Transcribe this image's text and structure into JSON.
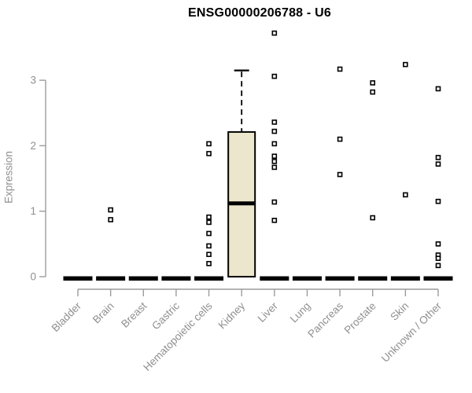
{
  "chart_data": {
    "type": "boxplot",
    "title": "ENSG00000206788 - U6",
    "ylabel": "Expression",
    "xlabel": "",
    "ylim": [
      0,
      3.75
    ],
    "yticks": [
      0,
      1,
      2,
      3
    ],
    "grid": false,
    "legend_position": "none",
    "categories": [
      "Bladder",
      "Brain",
      "Breast",
      "Gastric",
      "Hematopoietic cells",
      "Kidney",
      "Liver",
      "Lung",
      "Pancreas",
      "Prostate",
      "Skin",
      "Unknown / Other"
    ],
    "boxes": [
      {
        "category": "Bladder",
        "q1": 0,
        "median": 0,
        "q3": 0,
        "whisker_low": 0,
        "whisker_high": 0,
        "outliers": []
      },
      {
        "category": "Brain",
        "q1": 0,
        "median": 0,
        "q3": 0,
        "whisker_low": 0,
        "whisker_high": 0,
        "outliers": [
          1.02,
          0.87
        ]
      },
      {
        "category": "Breast",
        "q1": 0,
        "median": 0,
        "q3": 0,
        "whisker_low": 0,
        "whisker_high": 0,
        "outliers": []
      },
      {
        "category": "Gastric",
        "q1": 0,
        "median": 0,
        "q3": 0,
        "whisker_low": 0,
        "whisker_high": 0,
        "outliers": []
      },
      {
        "category": "Hematopoietic cells",
        "q1": 0,
        "median": 0,
        "q3": 0,
        "whisker_low": 0,
        "whisker_high": 0,
        "outliers": [
          2.03,
          1.88,
          0.91,
          0.83,
          0.66,
          0.47,
          0.34,
          0.2
        ]
      },
      {
        "category": "Kidney",
        "q1": 0,
        "median": 1.12,
        "q3": 2.21,
        "whisker_low": 0,
        "whisker_high": 3.15,
        "outliers": []
      },
      {
        "category": "Liver",
        "q1": 0,
        "median": 0,
        "q3": 0,
        "whisker_low": 0,
        "whisker_high": 0,
        "outliers": [
          3.72,
          3.06,
          2.36,
          2.22,
          2.03,
          1.84,
          1.76,
          1.67,
          1.14,
          0.86
        ]
      },
      {
        "category": "Lung",
        "q1": 0,
        "median": 0,
        "q3": 0,
        "whisker_low": 0,
        "whisker_high": 0,
        "outliers": []
      },
      {
        "category": "Pancreas",
        "q1": 0,
        "median": 0,
        "q3": 0,
        "whisker_low": 0,
        "whisker_high": 0,
        "outliers": [
          3.17,
          2.1,
          1.56
        ]
      },
      {
        "category": "Prostate",
        "q1": 0,
        "median": 0,
        "q3": 0,
        "whisker_low": 0,
        "whisker_high": 0,
        "outliers": [
          2.96,
          2.82,
          0.9
        ]
      },
      {
        "category": "Skin",
        "q1": 0,
        "median": 0,
        "q3": 0,
        "whisker_low": 0,
        "whisker_high": 0,
        "outliers": [
          3.24,
          1.25
        ]
      },
      {
        "category": "Unknown / Other",
        "q1": 0,
        "median": 0,
        "q3": 0,
        "whisker_low": 0,
        "whisker_high": 0,
        "outliers": [
          2.87,
          1.82,
          1.72,
          1.15,
          0.5,
          0.33,
          0.28,
          0.17
        ]
      }
    ],
    "colors": {
      "box_fill": "#ece6cc",
      "box_stroke": "#000000",
      "median": "#000000",
      "whisker": "#000000",
      "outlier_stroke": "#000000",
      "outlier_fill": "#ffffff",
      "axis_line": "#9c9c9c",
      "tick_text": "#8f8f8f",
      "title_text": "#000000"
    }
  }
}
